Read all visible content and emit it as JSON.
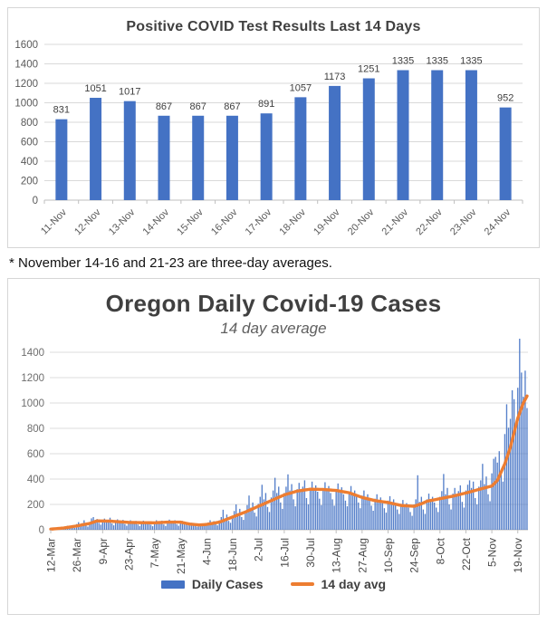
{
  "colors": {
    "bar_blue": "#4472C4",
    "line_orange": "#ED7D31",
    "grid_light": "#d9d9d9",
    "axis_line": "#bfbfbf",
    "tick_label": "#595959",
    "value_label": "#404040",
    "title_dark": "#404040"
  },
  "chart_data": [
    {
      "type": "bar",
      "title": "Positive COVID Test Results Last 14 Days",
      "categories": [
        "11-Nov",
        "12-Nov",
        "13-Nov",
        "14-Nov",
        "15-Nov",
        "16-Nov",
        "17-Nov",
        "18-Nov",
        "19-Nov",
        "20-Nov",
        "21-Nov",
        "22-Nov",
        "23-Nov",
        "24-Nov"
      ],
      "values": [
        831,
        1051,
        1017,
        867,
        867,
        867,
        891,
        1057,
        1173,
        1251,
        1335,
        1335,
        1335,
        952
      ],
      "ylim": [
        0,
        1600
      ],
      "yticks": [
        0,
        200,
        400,
        600,
        800,
        1000,
        1200,
        1400,
        1600
      ],
      "grid": true,
      "legend_position": "none",
      "bar_color": "#4472C4",
      "footnote": "* November 14-16 and 21-23 are three-day averages."
    },
    {
      "type": "bar+line",
      "title": "Oregon Daily Covid-19 Cases",
      "subtitle": "14 day average",
      "ylim": [
        0,
        1400
      ],
      "yticks": [
        0,
        200,
        400,
        600,
        800,
        1000,
        1200,
        1400
      ],
      "grid": true,
      "legend_position": "bottom",
      "x_tick_days": [
        0,
        14,
        28,
        42,
        56,
        70,
        84,
        98,
        112,
        126,
        140,
        154,
        168,
        182,
        196,
        210,
        224,
        238,
        252
      ],
      "x_tick_labels": [
        "12-Mar",
        "26-Mar",
        "9-Apr",
        "23-Apr",
        "7-May",
        "21-May",
        "4-Jun",
        "18-Jun",
        "2-Jul",
        "16-Jul",
        "30-Jul",
        "13-Aug",
        "27-Aug",
        "10-Sep",
        "24-Sep",
        "8-Oct",
        "22-Oct",
        "5-Nov",
        "19-Nov"
      ],
      "series": [
        {
          "name": "Daily Cases",
          "type": "bar",
          "color": "#4472C4",
          "values": [
            2,
            6,
            10,
            8,
            12,
            9,
            4,
            18,
            25,
            32,
            21,
            28,
            35,
            15,
            45,
            60,
            38,
            52,
            75,
            42,
            25,
            60,
            90,
            100,
            70,
            85,
            55,
            40,
            75,
            88,
            62,
            70,
            95,
            50,
            35,
            70,
            82,
            58,
            66,
            78,
            45,
            32,
            62,
            75,
            55,
            60,
            70,
            42,
            30,
            58,
            72,
            52,
            62,
            68,
            40,
            28,
            60,
            75,
            55,
            65,
            72,
            42,
            30,
            65,
            80,
            58,
            68,
            75,
            44,
            32,
            55,
            70,
            48,
            40,
            35,
            42,
            55,
            38,
            30,
            25,
            28,
            45,
            50,
            38,
            40,
            58,
            75,
            52,
            68,
            45,
            35,
            75,
            100,
            158,
            90,
            120,
            70,
            55,
            110,
            148,
            200,
            130,
            165,
            100,
            78,
            150,
            195,
            270,
            175,
            215,
            135,
            105,
            205,
            260,
            355,
            240,
            290,
            180,
            140,
            255,
            310,
            410,
            290,
            340,
            215,
            165,
            290,
            340,
            437,
            310,
            360,
            240,
            185,
            320,
            370,
            310,
            340,
            390,
            250,
            200,
            330,
            380,
            320,
            350,
            300,
            245,
            195,
            325,
            375,
            315,
            345,
            290,
            240,
            190,
            320,
            365,
            305,
            335,
            280,
            230,
            185,
            300,
            345,
            285,
            310,
            260,
            215,
            170,
            270,
            310,
            255,
            280,
            235,
            190,
            150,
            245,
            280,
            230,
            255,
            210,
            170,
            135,
            230,
            265,
            215,
            240,
            195,
            160,
            125,
            205,
            235,
            190,
            210,
            175,
            140,
            110,
            200,
            240,
            430,
            220,
            260,
            160,
            125,
            240,
            285,
            235,
            260,
            215,
            175,
            140,
            260,
            305,
            440,
            280,
            330,
            200,
            160,
            285,
            330,
            280,
            305,
            350,
            220,
            175,
            310,
            355,
            390,
            330,
            380,
            250,
            200,
            340,
            390,
            520,
            360,
            420,
            280,
            225,
            445,
            560,
            575,
            530,
            620,
            460,
            380,
            755,
            990,
            805,
            875,
            1100,
            1030,
            825,
            1120,
            1510,
            1240,
            1050,
            1255,
            960
          ]
        },
        {
          "name": "14 day avg",
          "type": "line",
          "color": "#ED7D31",
          "anchors": [
            [
              0,
              5
            ],
            [
              7,
              14
            ],
            [
              14,
              30
            ],
            [
              21,
              50
            ],
            [
              25,
              70
            ],
            [
              32,
              68
            ],
            [
              42,
              58
            ],
            [
              49,
              56
            ],
            [
              56,
              55
            ],
            [
              63,
              60
            ],
            [
              70,
              60
            ],
            [
              75,
              45
            ],
            [
              80,
              38
            ],
            [
              84,
              42
            ],
            [
              91,
              60
            ],
            [
              98,
              100
            ],
            [
              105,
              140
            ],
            [
              112,
              185
            ],
            [
              119,
              230
            ],
            [
              126,
              275
            ],
            [
              133,
              305
            ],
            [
              140,
              320
            ],
            [
              147,
              318
            ],
            [
              154,
              310
            ],
            [
              161,
              292
            ],
            [
              168,
              255
            ],
            [
              175,
              230
            ],
            [
              182,
              215
            ],
            [
              189,
              192
            ],
            [
              196,
              185
            ],
            [
              200,
              205
            ],
            [
              203,
              225
            ],
            [
              210,
              245
            ],
            [
              217,
              265
            ],
            [
              224,
              290
            ],
            [
              231,
              318
            ],
            [
              238,
              345
            ],
            [
              241,
              390
            ],
            [
              245,
              520
            ],
            [
              248,
              650
            ],
            [
              252,
              880
            ],
            [
              255,
              1000
            ],
            [
              257,
              1055
            ]
          ]
        }
      ]
    }
  ]
}
